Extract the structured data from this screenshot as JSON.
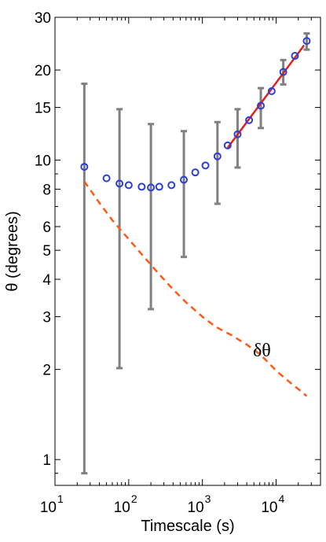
{
  "chart_data": {
    "type": "scatter",
    "xlabel": "Timescale (s)",
    "ylabel": "θ (degrees)",
    "x_scale": "log",
    "y_scale": "log",
    "xlim": [
      10,
      40000
    ],
    "ylim": [
      0.82,
      30
    ],
    "grid": false,
    "x_ticks": [
      {
        "value": 10,
        "base": "10",
        "exp": "1"
      },
      {
        "value": 100,
        "base": "10",
        "exp": "2"
      },
      {
        "value": 1000,
        "base": "10",
        "exp": "3"
      },
      {
        "value": 10000,
        "base": "10",
        "exp": "4"
      }
    ],
    "y_ticks": [
      {
        "value": 1,
        "label": "1"
      },
      {
        "value": 2,
        "label": "2"
      },
      {
        "value": 3,
        "label": "3"
      },
      {
        "value": 4,
        "label": "4"
      },
      {
        "value": 5,
        "label": "5"
      },
      {
        "value": 6,
        "label": "6"
      },
      {
        "value": 8,
        "label": "8"
      },
      {
        "value": 10,
        "label": "10"
      },
      {
        "value": 15,
        "label": "15"
      },
      {
        "value": 20,
        "label": "20"
      },
      {
        "value": 30,
        "label": "30"
      }
    ],
    "theta_points": {
      "color": "#2b3fd6",
      "x": [
        25,
        50,
        75,
        100,
        150,
        200,
        260,
        380,
        560,
        800,
        1100,
        1600,
        2200,
        3000,
        4300,
        6200,
        8700,
        12500,
        18000,
        26000
      ],
      "y": [
        9.5,
        8.7,
        8.35,
        8.25,
        8.15,
        8.1,
        8.15,
        8.25,
        8.6,
        9.1,
        9.6,
        10.3,
        11.2,
        12.2,
        13.6,
        15.2,
        17.0,
        19.7,
        22.3,
        25.0
      ]
    },
    "error_bars": {
      "color": "#808080",
      "x": [
        25,
        75,
        200,
        560,
        1600,
        3000,
        6200,
        12500,
        26000
      ],
      "low": [
        0.9,
        2.02,
        3.18,
        4.75,
        7.15,
        9.45,
        12.8,
        17.9,
        23.4
      ],
      "high": [
        18.0,
        14.8,
        13.2,
        12.5,
        13.4,
        14.8,
        17.4,
        21.6,
        26.5
      ]
    },
    "fit_line": {
      "color": "#e02020",
      "x": [
        2200,
        24000
      ],
      "y": [
        11.0,
        24.2
      ]
    },
    "delta_theta": {
      "color": "#ff5a14",
      "label": "δθ",
      "x": [
        25,
        40,
        60,
        100,
        150,
        250,
        400,
        600,
        1000,
        1500,
        2500,
        4000,
        6000,
        8000,
        10000,
        15000,
        20000,
        26000
      ],
      "y": [
        8.5,
        7.2,
        6.3,
        5.45,
        4.85,
        4.2,
        3.7,
        3.35,
        3.0,
        2.78,
        2.6,
        2.42,
        2.25,
        2.1,
        1.98,
        1.82,
        1.72,
        1.63
      ]
    }
  }
}
